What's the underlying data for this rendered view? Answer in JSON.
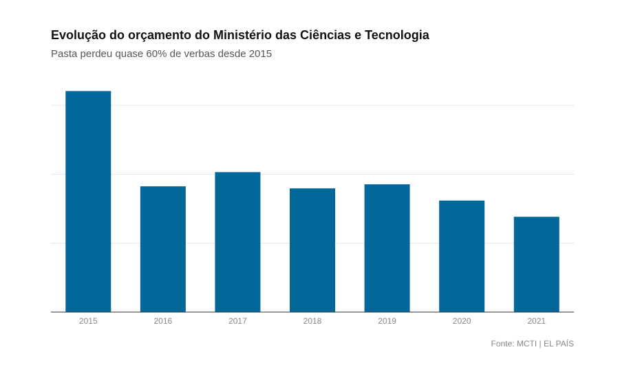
{
  "chart_data": {
    "type": "bar",
    "title": "Evolução do orçamento do Ministério das Ciências e Tecnologia",
    "subtitle": "Pasta perdeu quase 60% de verbas desde 2015",
    "source": "Fonte: MCTI | EL PAÍS",
    "categories": [
      "2015",
      "2016",
      "2017",
      "2018",
      "2019",
      "2020",
      "2021"
    ],
    "values": [
      10.9,
      6.2,
      6.9,
      6.1,
      6.3,
      5.5,
      4.7
    ],
    "ylim": [
      0,
      12
    ],
    "gridlines": [
      0,
      3.4,
      6.8,
      10.2
    ],
    "grid": true,
    "bar_color": "#04679a",
    "axis_color": "#333333",
    "grid_color": "#e6e6e6"
  }
}
